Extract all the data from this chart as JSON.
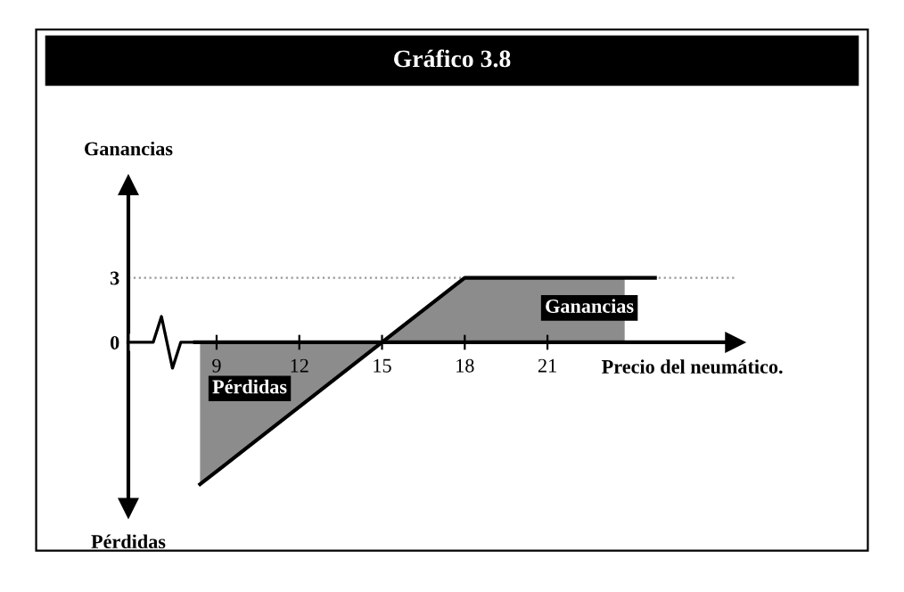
{
  "chart_data": {
    "type": "line",
    "title": "Gráfico 3.8",
    "xlabel": "Precio del neumático.",
    "ylabel": "Ganancias",
    "annotations": [
      "Pérdidas",
      "Pérdidas",
      "Ganancias"
    ],
    "series": [
      {
        "type": "area",
        "color": "#8c8c8c",
        "x": [
          8.4,
          15,
          18,
          23.8
        ],
        "values": [
          -6.6,
          0,
          3,
          3
        ]
      },
      {
        "color": "#000000",
        "x": [
          8.4,
          15,
          18,
          24.9
        ],
        "values": [
          -6.6,
          0,
          3,
          3
        ]
      }
    ],
    "xlim": [
      5.8,
      27.8
    ],
    "ylim": [
      -7.7,
      7.3
    ],
    "xticks": [
      9,
      12,
      15,
      18,
      21
    ],
    "yticks": [
      0,
      3
    ],
    "ref_lines": [
      {
        "axis": "y",
        "value": 3,
        "color": "#999999",
        "line_style": "dotted"
      }
    ],
    "grid": false,
    "legend": false
  }
}
